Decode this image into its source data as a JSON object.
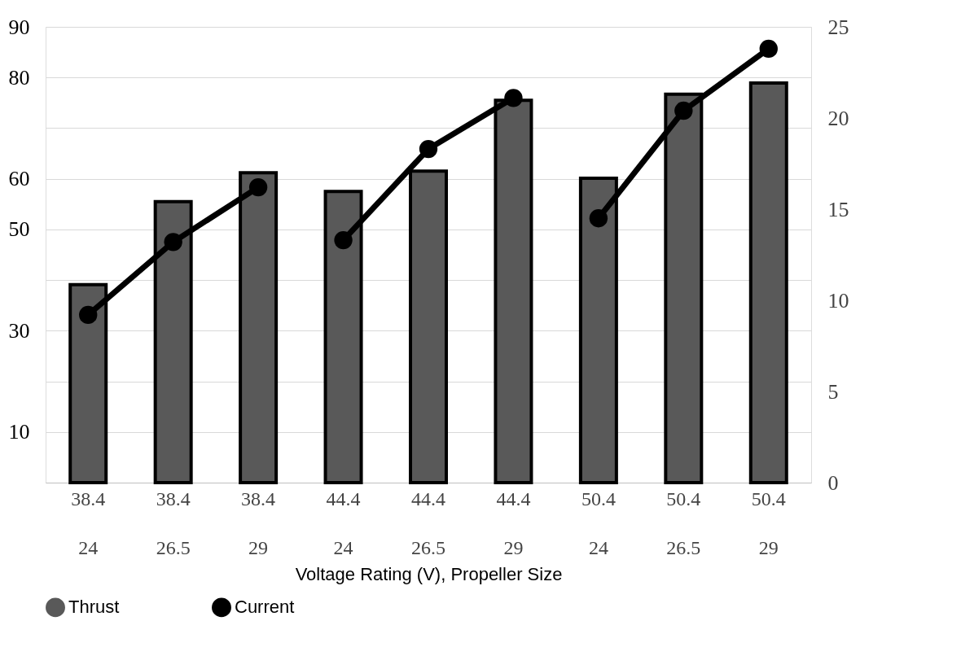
{
  "chart_data": {
    "type": "bar",
    "xlabel": "Voltage Rating (V), Propeller Size",
    "categories": [
      "38.4\n24",
      "38.4\n26.5",
      "38.4\n29",
      "44.4\n24",
      "44.4\n26.5",
      "44.4\n29",
      "50.4\n24",
      "50.4\n26.5",
      "50.4\n29"
    ],
    "series": [
      {
        "name": "Thrust",
        "color": "#595959",
        "values": [
          39.1,
          55.5,
          61.2,
          57.5,
          61.5,
          75.5,
          60.1,
          76.7,
          78.9
        ]
      },
      {
        "name": "Current",
        "type": "line",
        "axis": "y2",
        "color": "#000000",
        "marker": "circle",
        "values": [
          9.2,
          13.2,
          16.2,
          13.3,
          18.3,
          21.1,
          14.5,
          20.4,
          23.8
        ]
      }
    ],
    "ylim": [
      0,
      90
    ],
    "yticks": [
      {
        "value": 0,
        "label": null
      },
      10,
      {
        "value": 20,
        "label": null
      },
      30,
      {
        "value": 40,
        "label": null
      },
      50,
      60,
      {
        "value": 70,
        "label": null
      },
      80,
      90
    ],
    "y2lim": [
      0,
      25
    ],
    "y2ticks": [
      0,
      5,
      10,
      15,
      20,
      25
    ],
    "grid": "y",
    "legend": "bottom"
  }
}
